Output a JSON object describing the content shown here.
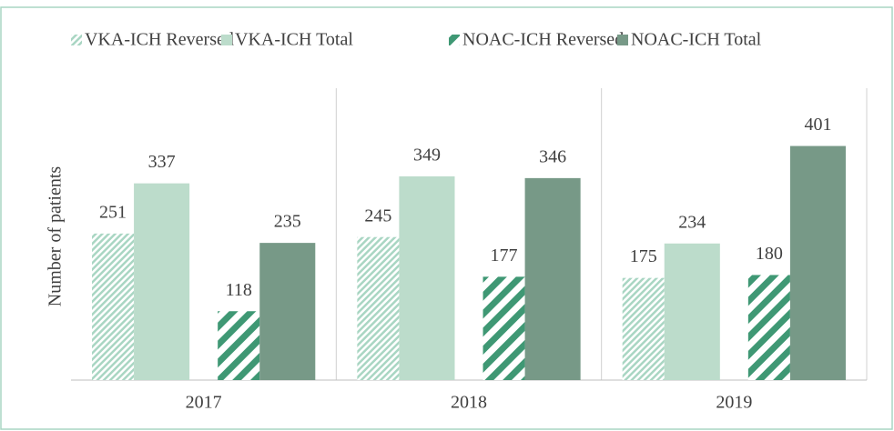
{
  "chart_data": {
    "type": "bar",
    "ylabel": "Number of patients",
    "categories": [
      "2017",
      "2018",
      "2019"
    ],
    "series": [
      {
        "name": "VKA-ICH Reversed",
        "color": "#a9d6c3",
        "pattern": "fine-hatch",
        "values": [
          251,
          245,
          175
        ]
      },
      {
        "name": "VKA-ICH Total",
        "color": "#bcdccb",
        "values": [
          337,
          349,
          234
        ]
      },
      {
        "name": "NOAC-ICH Reversed",
        "color": "#3f9874",
        "pattern": "bold-hatch",
        "values": [
          118,
          177,
          180
        ]
      },
      {
        "name": "NOAC-ICH Total",
        "color": "#779987",
        "values": [
          235,
          346,
          401
        ]
      }
    ],
    "ylim": [
      0,
      500
    ],
    "legend": "top",
    "grid": false
  }
}
